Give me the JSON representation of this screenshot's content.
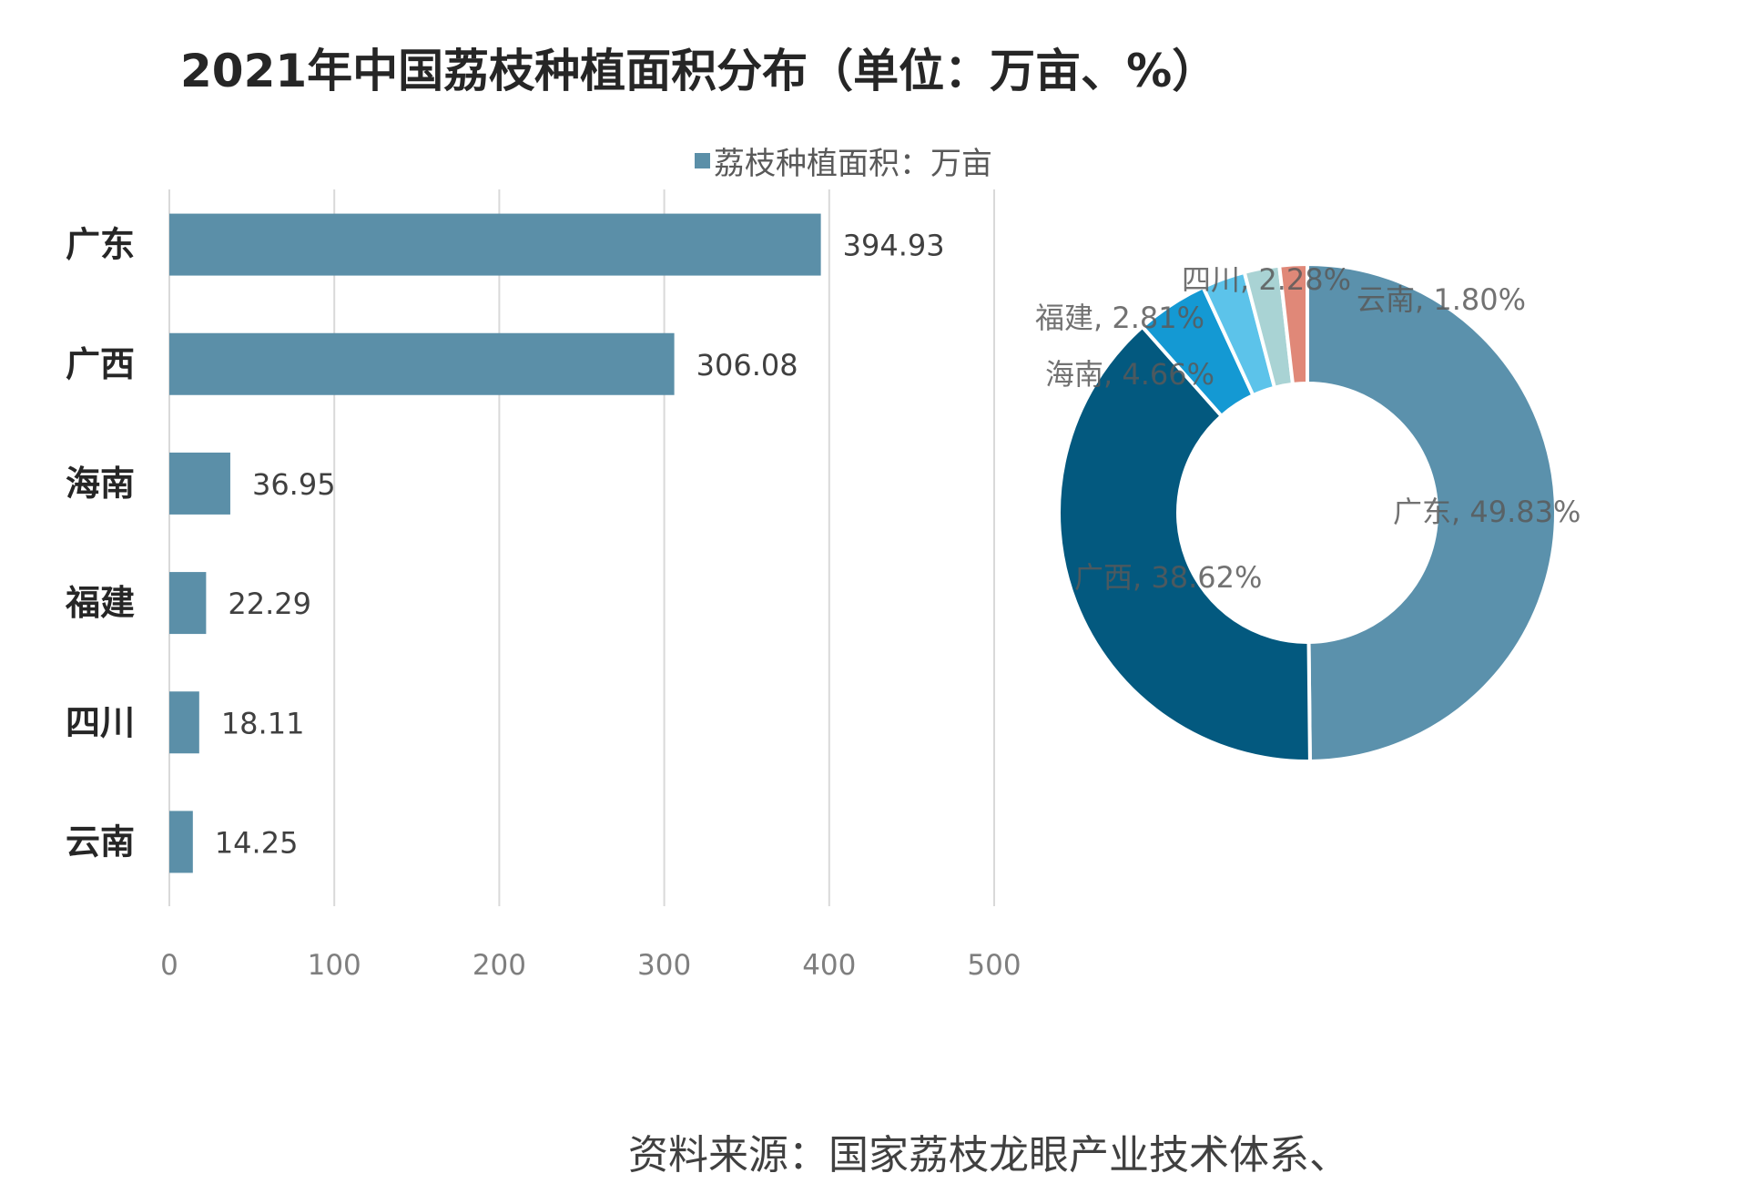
{
  "chart_data": [
    {
      "type": "bar",
      "orientation": "horizontal",
      "title": "2021年中国荔枝种植面积分布（单位：万亩、%）",
      "legend": {
        "label": "荔枝种植面积：万亩",
        "position": "top"
      },
      "categories": [
        "广东",
        "广西",
        "海南",
        "福建",
        "四川",
        "云南"
      ],
      "values": [
        394.93,
        306.08,
        36.95,
        22.29,
        18.11,
        14.25
      ],
      "value_labels": [
        "394.93",
        "306.08",
        "36.95",
        "22.29",
        "18.11",
        "14.25"
      ],
      "xlim": [
        0,
        500
      ],
      "xticks": [
        "0",
        "100",
        "200",
        "300",
        "400",
        "500"
      ],
      "grid": "vertical",
      "color": "#5b8fa8"
    },
    {
      "type": "pie",
      "donut": true,
      "categories": [
        "广东",
        "广西",
        "海南",
        "福建",
        "四川",
        "云南"
      ],
      "values": [
        49.83,
        38.62,
        4.66,
        2.81,
        2.28,
        1.8
      ],
      "labels": [
        "广东, 49.83%",
        "广西, 38.62%",
        "海南, 4.66%",
        "福建, 2.81%",
        "四川, 2.28%",
        "云南, 1.80%"
      ],
      "colors": [
        "#5b91ac",
        "#03597f",
        "#1499d3",
        "#5cc3ea",
        "#a9d3d4",
        "#e08878"
      ]
    }
  ],
  "source": "资料来源：国家荔枝龙眼产业技术体系、"
}
